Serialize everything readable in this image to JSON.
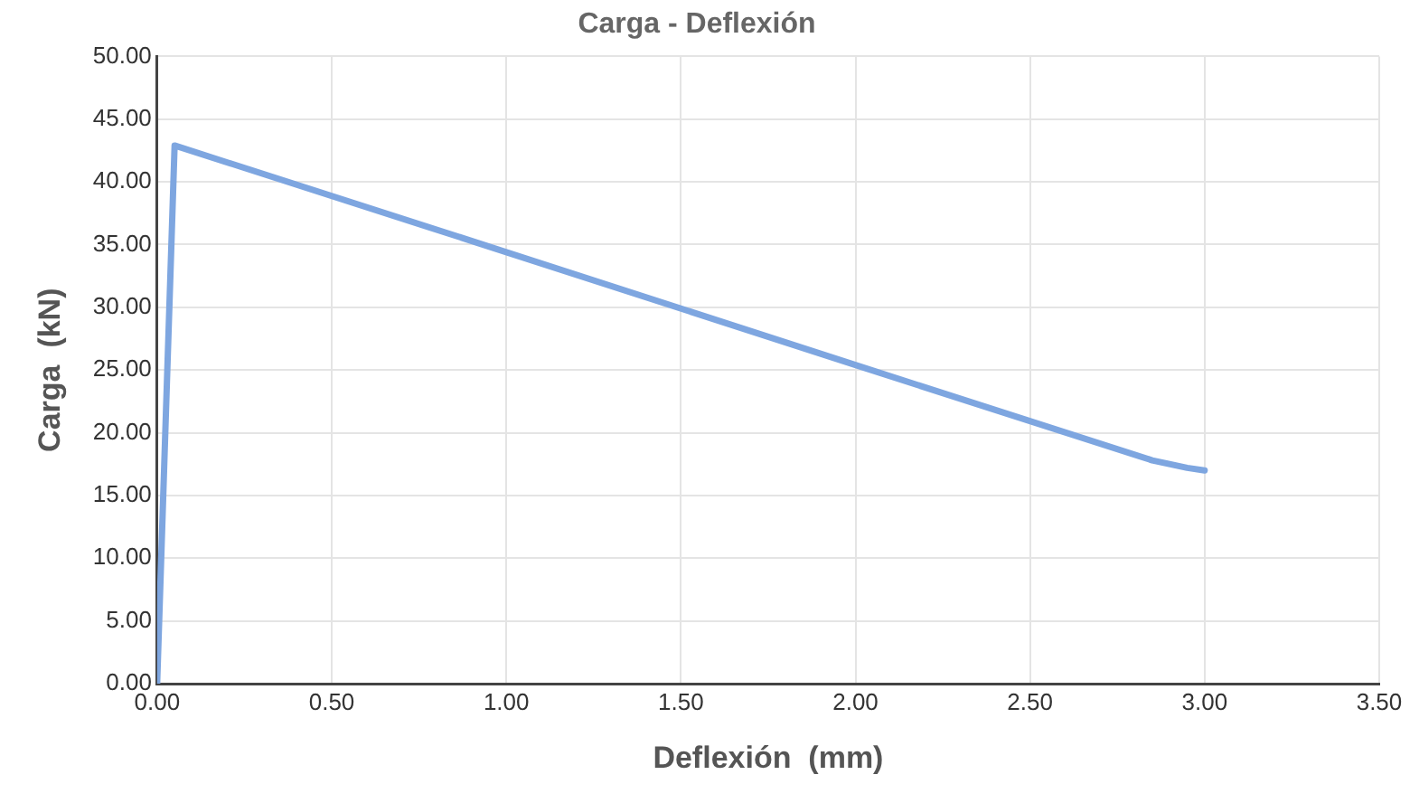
{
  "chart_data": {
    "type": "line",
    "title": "Carga - Deflexión",
    "xlabel": "Deflexión  (mm)",
    "ylabel": "Carga  (kN)",
    "series": [
      {
        "color": "#7ea6e0",
        "x": [
          0,
          0.05,
          1.0,
          2.0,
          2.85,
          2.95,
          3.0
        ],
        "values": [
          0,
          42.9,
          34.4,
          25.4,
          17.8,
          17.2,
          17.0
        ]
      }
    ],
    "xlim": [
      0,
      3.5
    ],
    "ylim": [
      0,
      50
    ],
    "xticks": [
      {
        "value": 0,
        "label": "0.00"
      },
      {
        "value": 0.5,
        "label": "0.50"
      },
      {
        "value": 1,
        "label": "1.00"
      },
      {
        "value": 1.5,
        "label": "1.50"
      },
      {
        "value": 2,
        "label": "2.00"
      },
      {
        "value": 2.5,
        "label": "2.50"
      },
      {
        "value": 3,
        "label": "3.00"
      },
      {
        "value": 3.5,
        "label": "3.50"
      }
    ],
    "yticks": [
      {
        "value": 0,
        "label": "0.00"
      },
      {
        "value": 5,
        "label": "5.00"
      },
      {
        "value": 10,
        "label": "10.00"
      },
      {
        "value": 15,
        "label": "15.00"
      },
      {
        "value": 20,
        "label": "20.00"
      },
      {
        "value": 25,
        "label": "25.00"
      },
      {
        "value": 30,
        "label": "30.00"
      },
      {
        "value": 35,
        "label": "35.00"
      },
      {
        "value": 40,
        "label": "40.00"
      },
      {
        "value": 45,
        "label": "45.00"
      },
      {
        "value": 50,
        "label": "50.00"
      }
    ],
    "grid": true,
    "legend": false,
    "marker": "none",
    "line_style": "solid"
  }
}
